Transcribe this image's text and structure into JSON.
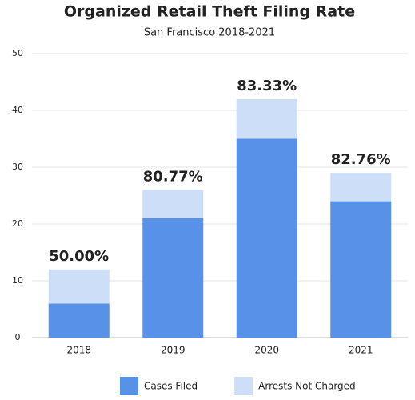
{
  "chart_data": {
    "type": "stacked_bar",
    "title": "Organized Retail Theft Filing Rate",
    "subtitle": "San Francisco 2018-2021",
    "categories": [
      "2018",
      "2019",
      "2020",
      "2021"
    ],
    "series": [
      {
        "name": "Cases Filed",
        "color": "#5891e8",
        "values": [
          6,
          21,
          35,
          24
        ]
      },
      {
        "name": "Arrests Not Charged",
        "color": "#cddff8",
        "values": [
          6,
          5,
          7,
          5
        ]
      }
    ],
    "annotations": [
      "50.00%",
      "80.77%",
      "83.33%",
      "82.76%"
    ],
    "ylim": [
      0,
      50
    ],
    "yticks": [
      0,
      10,
      20,
      30,
      40,
      50
    ],
    "grid": true,
    "legend": "bottom"
  }
}
